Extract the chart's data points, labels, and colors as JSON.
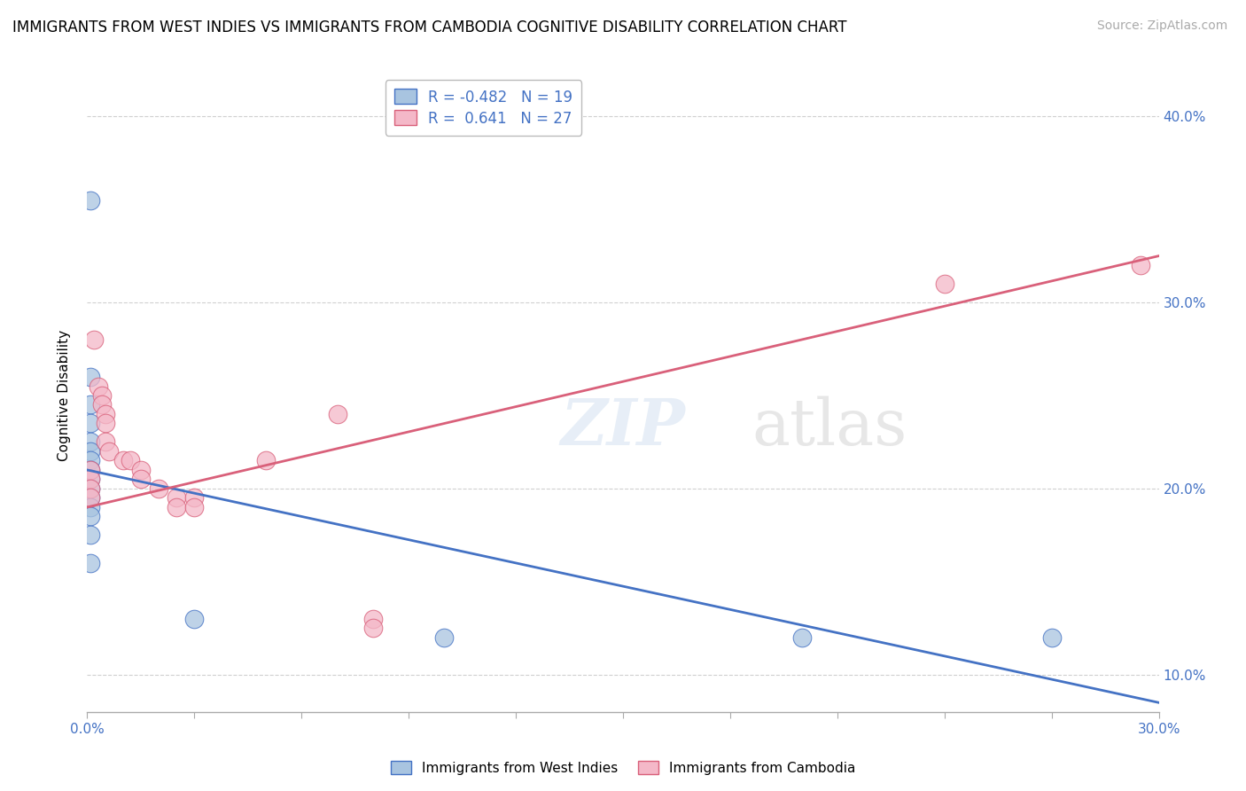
{
  "title": "IMMIGRANTS FROM WEST INDIES VS IMMIGRANTS FROM CAMBODIA COGNITIVE DISABILITY CORRELATION CHART",
  "source": "Source: ZipAtlas.com",
  "ylabel": "Cognitive Disability",
  "legend_blue": {
    "r": -0.482,
    "n": 19,
    "label": "Immigrants from West Indies"
  },
  "legend_pink": {
    "r": 0.641,
    "n": 27,
    "label": "Immigrants from Cambodia"
  },
  "blue_color": "#a8c4e0",
  "blue_line_color": "#4472c4",
  "pink_color": "#f4b8c8",
  "pink_line_color": "#d9607a",
  "blue_scatter": [
    [
      0.001,
      0.355
    ],
    [
      0.001,
      0.26
    ],
    [
      0.001,
      0.245
    ],
    [
      0.001,
      0.235
    ],
    [
      0.001,
      0.225
    ],
    [
      0.001,
      0.22
    ],
    [
      0.001,
      0.215
    ],
    [
      0.001,
      0.21
    ],
    [
      0.001,
      0.205
    ],
    [
      0.001,
      0.2
    ],
    [
      0.001,
      0.195
    ],
    [
      0.001,
      0.19
    ],
    [
      0.001,
      0.185
    ],
    [
      0.001,
      0.175
    ],
    [
      0.001,
      0.16
    ],
    [
      0.03,
      0.13
    ],
    [
      0.1,
      0.12
    ],
    [
      0.2,
      0.12
    ],
    [
      0.27,
      0.12
    ]
  ],
  "pink_scatter": [
    [
      0.001,
      0.21
    ],
    [
      0.001,
      0.205
    ],
    [
      0.001,
      0.2
    ],
    [
      0.001,
      0.195
    ],
    [
      0.002,
      0.28
    ],
    [
      0.003,
      0.255
    ],
    [
      0.004,
      0.25
    ],
    [
      0.004,
      0.245
    ],
    [
      0.005,
      0.24
    ],
    [
      0.005,
      0.235
    ],
    [
      0.005,
      0.225
    ],
    [
      0.006,
      0.22
    ],
    [
      0.01,
      0.215
    ],
    [
      0.012,
      0.215
    ],
    [
      0.015,
      0.21
    ],
    [
      0.015,
      0.205
    ],
    [
      0.02,
      0.2
    ],
    [
      0.025,
      0.195
    ],
    [
      0.025,
      0.19
    ],
    [
      0.03,
      0.195
    ],
    [
      0.03,
      0.19
    ],
    [
      0.05,
      0.215
    ],
    [
      0.07,
      0.24
    ],
    [
      0.08,
      0.13
    ],
    [
      0.08,
      0.125
    ],
    [
      0.24,
      0.31
    ],
    [
      0.295,
      0.32
    ]
  ],
  "xlim": [
    0.0,
    0.3
  ],
  "ylim": [
    0.08,
    0.42
  ],
  "x_ticks": [
    0.0,
    0.03,
    0.06,
    0.09,
    0.12,
    0.15,
    0.18,
    0.21,
    0.24,
    0.27,
    0.3
  ],
  "y_ticks": [
    0.1,
    0.2,
    0.3,
    0.4
  ],
  "background_color": "#ffffff",
  "grid_color": "#d0d0d0"
}
